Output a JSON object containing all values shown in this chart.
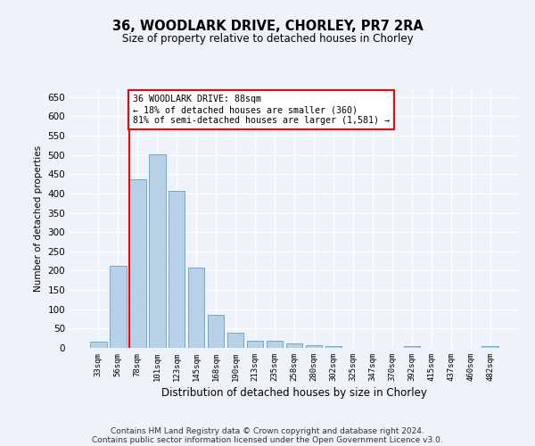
{
  "title": "36, WOODLARK DRIVE, CHORLEY, PR7 2RA",
  "subtitle": "Size of property relative to detached houses in Chorley",
  "xlabel": "Distribution of detached houses by size in Chorley",
  "ylabel": "Number of detached properties",
  "bar_color": "#b8d0e8",
  "bar_edge_color": "#6aaad4",
  "categories": [
    "33sqm",
    "56sqm",
    "78sqm",
    "101sqm",
    "123sqm",
    "145sqm",
    "168sqm",
    "190sqm",
    "213sqm",
    "235sqm",
    "258sqm",
    "280sqm",
    "302sqm",
    "325sqm",
    "347sqm",
    "370sqm",
    "392sqm",
    "415sqm",
    "437sqm",
    "460sqm",
    "482sqm"
  ],
  "values": [
    16,
    212,
    437,
    502,
    407,
    207,
    86,
    40,
    18,
    18,
    11,
    6,
    4,
    1,
    0,
    0,
    5,
    0,
    0,
    0,
    5
  ],
  "ylim": [
    0,
    670
  ],
  "yticks": [
    0,
    50,
    100,
    150,
    200,
    250,
    300,
    350,
    400,
    450,
    500,
    550,
    600,
    650
  ],
  "annotation_text": "36 WOODLARK DRIVE: 88sqm\n← 18% of detached houses are smaller (360)\n81% of semi-detached houses are larger (1,581) →",
  "vline_index": 2,
  "annotation_box_color": "white",
  "annotation_box_edge": "red",
  "footer1": "Contains HM Land Registry data © Crown copyright and database right 2024.",
  "footer2": "Contains public sector information licensed under the Open Government Licence v3.0.",
  "bg_color": "#eef2fb",
  "grid_color": "white"
}
